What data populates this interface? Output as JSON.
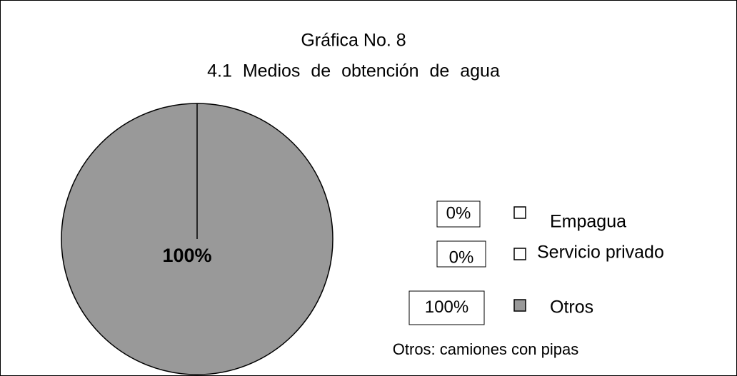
{
  "chart_data": {
    "type": "pie",
    "title": "Gráfica No. 8",
    "subtitle": "4.1 Medios de obtención de agua",
    "categories": [
      "Empagua",
      "Servicio privado",
      "Otros"
    ],
    "values": [
      0,
      0,
      100
    ],
    "value_labels": [
      "0%",
      "0%",
      "100%"
    ],
    "colors": [
      "#ffffff",
      "#ffffff",
      "#999999"
    ],
    "annotation": "Otros: camiones con pipas"
  }
}
